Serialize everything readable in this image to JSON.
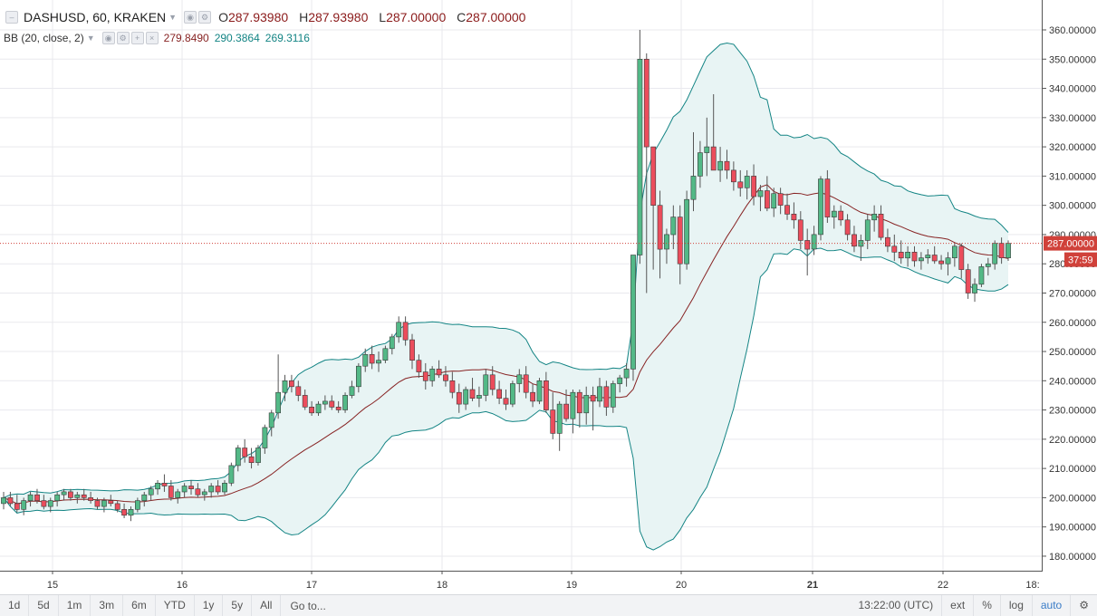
{
  "header": {
    "symbol": "DASHUSD, 60, KRAKEN",
    "open_label": "O",
    "open": "287.93980",
    "high_label": "H",
    "high": "287.93980",
    "low_label": "L",
    "low": "287.00000",
    "close_label": "C",
    "close": "287.00000"
  },
  "indicator": {
    "name": "BB (20, close, 2)",
    "basis": "279.8490",
    "upper": "290.3864",
    "lower": "269.3116"
  },
  "colors": {
    "up": "#53b987",
    "down": "#eb4d5c",
    "basis": "#872323",
    "bands": "#138484",
    "fill": "#e8f4f4",
    "grid": "#e9e9ee",
    "price_tag": "#d0413a"
  },
  "price_scale": {
    "ticks": [
      "360.00000",
      "350.00000",
      "340.00000",
      "330.00000",
      "320.00000",
      "310.00000",
      "300.00000",
      "290.00000",
      "280.00000",
      "270.00000",
      "260.00000",
      "250.00000",
      "240.00000",
      "230.00000",
      "220.00000",
      "210.00000",
      "200.00000",
      "190.00000",
      "180.00000"
    ],
    "last_price": "287.00000",
    "countdown": "37:59"
  },
  "time_scale": {
    "labels": [
      "15",
      "16",
      "17",
      "18",
      "19",
      "20",
      "21",
      "22",
      "18:"
    ]
  },
  "toolbar": {
    "timeframes": [
      "1d",
      "5d",
      "1m",
      "3m",
      "6m",
      "YTD",
      "1y",
      "5y",
      "All"
    ],
    "goto": "Go to...",
    "clock": "13:22:00 (UTC)",
    "ext": "ext",
    "percent": "%",
    "log": "log",
    "auto": "auto",
    "settings_icon": "gear-icon"
  },
  "chart_data": {
    "type": "candlestick",
    "symbol": "DASHUSD",
    "interval": "60",
    "ylim": [
      175,
      365
    ],
    "x_tick_labels": [
      "15",
      "16",
      "17",
      "18",
      "19",
      "20",
      "21",
      "22"
    ],
    "candles_ohlc": [
      [
        198,
        202,
        196,
        200
      ],
      [
        200,
        202,
        197,
        198
      ],
      [
        198,
        201,
        195,
        196
      ],
      [
        196,
        200,
        194,
        199
      ],
      [
        199,
        202,
        197,
        201
      ],
      [
        201,
        203,
        198,
        199
      ],
      [
        199,
        201,
        196,
        197
      ],
      [
        197,
        200,
        195,
        199
      ],
      [
        199,
        202,
        197,
        201
      ],
      [
        201,
        203,
        199,
        202
      ],
      [
        202,
        203,
        199,
        200
      ],
      [
        200,
        202,
        198,
        201
      ],
      [
        201,
        203,
        199,
        200
      ],
      [
        200,
        202,
        198,
        199
      ],
      [
        199,
        200,
        196,
        197
      ],
      [
        197,
        200,
        195,
        199
      ],
      [
        199,
        201,
        197,
        198
      ],
      [
        198,
        199,
        195,
        196
      ],
      [
        196,
        198,
        193,
        194
      ],
      [
        194,
        197,
        192,
        196
      ],
      [
        196,
        200,
        195,
        199
      ],
      [
        199,
        202,
        197,
        201
      ],
      [
        201,
        204,
        199,
        203
      ],
      [
        203,
        206,
        201,
        205
      ],
      [
        205,
        208,
        202,
        204
      ],
      [
        204,
        206,
        199,
        200
      ],
      [
        200,
        203,
        198,
        202
      ],
      [
        202,
        205,
        200,
        204
      ],
      [
        204,
        206,
        201,
        203
      ],
      [
        203,
        205,
        200,
        201
      ],
      [
        201,
        203,
        199,
        202
      ],
      [
        202,
        205,
        200,
        204
      ],
      [
        204,
        206,
        201,
        202
      ],
      [
        202,
        206,
        201,
        205
      ],
      [
        205,
        212,
        204,
        211
      ],
      [
        211,
        218,
        209,
        217
      ],
      [
        217,
        220,
        212,
        214
      ],
      [
        214,
        217,
        210,
        212
      ],
      [
        212,
        218,
        211,
        217
      ],
      [
        217,
        225,
        215,
        224
      ],
      [
        224,
        230,
        221,
        229
      ],
      [
        229,
        249,
        227,
        236
      ],
      [
        236,
        242,
        233,
        240
      ],
      [
        240,
        242,
        236,
        238
      ],
      [
        238,
        240,
        233,
        235
      ],
      [
        235,
        237,
        230,
        231
      ],
      [
        231,
        233,
        228,
        229
      ],
      [
        229,
        233,
        228,
        232
      ],
      [
        232,
        235,
        230,
        233
      ],
      [
        233,
        235,
        230,
        231
      ],
      [
        231,
        233,
        229,
        230
      ],
      [
        230,
        236,
        229,
        235
      ],
      [
        235,
        240,
        234,
        238
      ],
      [
        238,
        246,
        236,
        245
      ],
      [
        245,
        251,
        243,
        249
      ],
      [
        249,
        252,
        244,
        246
      ],
      [
        246,
        250,
        243,
        247
      ],
      [
        247,
        252,
        246,
        251
      ],
      [
        251,
        256,
        249,
        255
      ],
      [
        255,
        262,
        253,
        260
      ],
      [
        260,
        262,
        252,
        254
      ],
      [
        254,
        256,
        244,
        247
      ],
      [
        247,
        249,
        241,
        243
      ],
      [
        243,
        246,
        237,
        240
      ],
      [
        240,
        245,
        238,
        244
      ],
      [
        244,
        247,
        241,
        242
      ],
      [
        242,
        245,
        238,
        240
      ],
      [
        240,
        243,
        234,
        236
      ],
      [
        236,
        239,
        229,
        232
      ],
      [
        232,
        238,
        230,
        237
      ],
      [
        237,
        241,
        233,
        234
      ],
      [
        234,
        238,
        231,
        235
      ],
      [
        235,
        244,
        233,
        242
      ],
      [
        242,
        245,
        235,
        237
      ],
      [
        237,
        240,
        232,
        234
      ],
      [
        234,
        237,
        230,
        232
      ],
      [
        232,
        240,
        231,
        239
      ],
      [
        239,
        244,
        236,
        242
      ],
      [
        242,
        245,
        234,
        236
      ],
      [
        236,
        239,
        231,
        233
      ],
      [
        233,
        241,
        232,
        240
      ],
      [
        240,
        243,
        229,
        230
      ],
      [
        230,
        236,
        220,
        222
      ],
      [
        222,
        233,
        216,
        232
      ],
      [
        232,
        237,
        226,
        227
      ],
      [
        227,
        237,
        222,
        236
      ],
      [
        236,
        237,
        224,
        229
      ],
      [
        229,
        238,
        225,
        235
      ],
      [
        235,
        238,
        223,
        233
      ],
      [
        233,
        241,
        231,
        238
      ],
      [
        238,
        240,
        228,
        231
      ],
      [
        231,
        240,
        229,
        239
      ],
      [
        239,
        242,
        236,
        241
      ],
      [
        241,
        246,
        238,
        244
      ],
      [
        244,
        275,
        240,
        283
      ],
      [
        283,
        360,
        280,
        350
      ],
      [
        350,
        352,
        270,
        320
      ],
      [
        320,
        320,
        278,
        300
      ],
      [
        300,
        305,
        275,
        285
      ],
      [
        285,
        292,
        280,
        290
      ],
      [
        290,
        300,
        285,
        296
      ],
      [
        296,
        300,
        273,
        280
      ],
      [
        280,
        305,
        278,
        302
      ],
      [
        302,
        325,
        298,
        310
      ],
      [
        310,
        322,
        306,
        318
      ],
      [
        318,
        330,
        310,
        320
      ],
      [
        320,
        338,
        313,
        312
      ],
      [
        312,
        320,
        308,
        315
      ],
      [
        315,
        319,
        309,
        312
      ],
      [
        312,
        315,
        305,
        308
      ],
      [
        308,
        312,
        303,
        306
      ],
      [
        306,
        312,
        302,
        310
      ],
      [
        310,
        314,
        300,
        303
      ],
      [
        303,
        307,
        298,
        305
      ],
      [
        305,
        310,
        298,
        299
      ],
      [
        299,
        306,
        296,
        304
      ],
      [
        304,
        306,
        297,
        300
      ],
      [
        300,
        304,
        295,
        297
      ],
      [
        297,
        301,
        292,
        295
      ],
      [
        295,
        298,
        285,
        288
      ],
      [
        288,
        292,
        276,
        285
      ],
      [
        285,
        293,
        283,
        290
      ],
      [
        290,
        310,
        288,
        309
      ],
      [
        309,
        312,
        294,
        296
      ],
      [
        296,
        300,
        292,
        298
      ],
      [
        298,
        300,
        293,
        295
      ],
      [
        295,
        297,
        288,
        290
      ],
      [
        290,
        293,
        284,
        286
      ],
      [
        286,
        290,
        281,
        288
      ],
      [
        288,
        297,
        285,
        295
      ],
      [
        295,
        300,
        291,
        297
      ],
      [
        297,
        300,
        288,
        289
      ],
      [
        289,
        292,
        284,
        286
      ],
      [
        286,
        290,
        281,
        284
      ],
      [
        284,
        288,
        280,
        282
      ],
      [
        282,
        286,
        279,
        284
      ],
      [
        284,
        286,
        279,
        281
      ],
      [
        281,
        284,
        278,
        282
      ],
      [
        282,
        285,
        280,
        283
      ],
      [
        283,
        286,
        280,
        281
      ],
      [
        281,
        283,
        278,
        280
      ],
      [
        280,
        284,
        276,
        282
      ],
      [
        282,
        287,
        279,
        286
      ],
      [
        286,
        287,
        275,
        278
      ],
      [
        278,
        280,
        268,
        270
      ],
      [
        270,
        275,
        267,
        273
      ],
      [
        273,
        280,
        272,
        279
      ],
      [
        279,
        282,
        276,
        280
      ],
      [
        280,
        288,
        278,
        287
      ],
      [
        287,
        289,
        280,
        282
      ],
      [
        282,
        288,
        281,
        287
      ]
    ],
    "bollinger": {
      "period": 20,
      "source": "close",
      "stddev": 2,
      "basis": 279.849,
      "upper": 290.3864,
      "lower": 269.3116
    },
    "last_price": 287.0
  }
}
